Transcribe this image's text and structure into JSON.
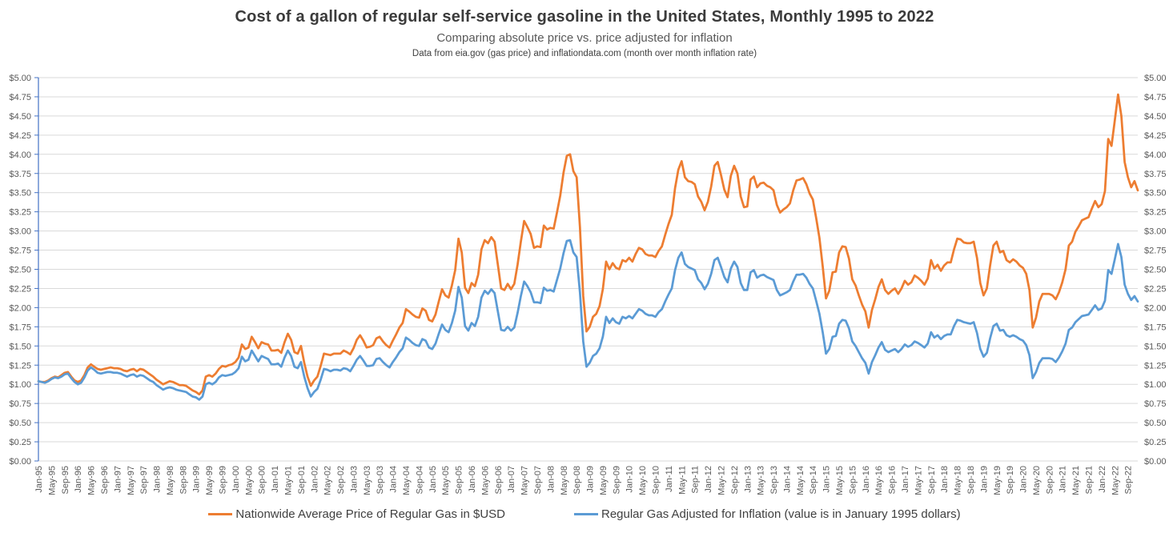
{
  "title": "Cost of a gallon of regular self-service gasoline in the United States, Monthly 1995 to 2022",
  "subtitle": "Comparing absolute price vs. price adjusted for inflation",
  "source_note": "Data from eia.gov (gas price) and inflationdata.com (month over month inflation rate)",
  "chart_data": {
    "type": "line",
    "x_frequency": "monthly",
    "x_start": "Jan-1995",
    "x_end": "Dec-2022",
    "grid": true,
    "legend_position": "bottom",
    "ylim": [
      0,
      5
    ],
    "y_tick_step": 0.25,
    "axis_color": "#4472C4",
    "grid_color": "#D9D9D9",
    "label_color": "#595959",
    "y_tick_labels": [
      "$0.00",
      "$0.25",
      "$0.50",
      "$0.75",
      "$1.00",
      "$1.25",
      "$1.50",
      "$1.75",
      "$2.00",
      "$2.25",
      "$2.50",
      "$2.75",
      "$3.00",
      "$3.25",
      "$3.50",
      "$3.75",
      "$4.00",
      "$4.25",
      "$4.50",
      "$4.75",
      "$5.00"
    ],
    "x_tick_every_months": 4,
    "x_tick_labels": [
      "Jan-95",
      "May-95",
      "Sep-95",
      "Jan-96",
      "May-96",
      "Sep-96",
      "Jan-97",
      "May-97",
      "Sep-97",
      "Jan-98",
      "May-98",
      "Sep-98",
      "Jan-99",
      "May-99",
      "Sep-99",
      "Jan-00",
      "May-00",
      "Sep-00",
      "Jan-01",
      "May-01",
      "Sep-01",
      "Jan-02",
      "May-02",
      "Sep-02",
      "Jan-03",
      "May-03",
      "Sep-03",
      "Jan-04",
      "May-04",
      "Sep-04",
      "Jan-05",
      "May-05",
      "Sep-05",
      "Jan-06",
      "May-06",
      "Sep-06",
      "Jan-07",
      "May-07",
      "Sep-07",
      "Jan-08",
      "May-08",
      "Sep-08",
      "Jan-09",
      "May-09",
      "Sep-09",
      "Jan-10",
      "May-10",
      "Sep-10",
      "Jan-11",
      "May-11",
      "Sep-11",
      "Jan-12",
      "May-12",
      "Sep-12",
      "Jan-13",
      "May-13",
      "Sep-13",
      "Jan-14",
      "May-14",
      "Sep-14",
      "Jan-15",
      "May-15",
      "Sep-15",
      "Jan-16",
      "May-16",
      "Sep-16",
      "Jan-17",
      "May-17",
      "Sep-17",
      "Jan-18",
      "May-18",
      "Sep-18",
      "Jan-19",
      "May-19",
      "Sep-19",
      "Jan-20",
      "May-20",
      "Sep-20",
      "Jan-21",
      "May-21",
      "Sep-21",
      "Jan-22",
      "May-22",
      "Sep-22"
    ],
    "series": [
      {
        "name": "Nationwide Average Price of Regular Gas in $USD",
        "color": "#ED7D31",
        "values": [
          1.04,
          1.03,
          1.03,
          1.05,
          1.08,
          1.1,
          1.09,
          1.12,
          1.15,
          1.16,
          1.1,
          1.05,
          1.03,
          1.05,
          1.12,
          1.22,
          1.26,
          1.23,
          1.2,
          1.19,
          1.2,
          1.21,
          1.22,
          1.21,
          1.21,
          1.2,
          1.18,
          1.17,
          1.19,
          1.2,
          1.17,
          1.2,
          1.19,
          1.16,
          1.13,
          1.1,
          1.06,
          1.03,
          1.0,
          1.02,
          1.04,
          1.03,
          1.01,
          0.99,
          0.99,
          0.98,
          0.95,
          0.92,
          0.9,
          0.87,
          0.92,
          1.1,
          1.12,
          1.1,
          1.14,
          1.2,
          1.24,
          1.23,
          1.25,
          1.26,
          1.29,
          1.35,
          1.52,
          1.46,
          1.48,
          1.62,
          1.55,
          1.47,
          1.55,
          1.53,
          1.52,
          1.44,
          1.44,
          1.45,
          1.41,
          1.55,
          1.66,
          1.58,
          1.42,
          1.4,
          1.5,
          1.28,
          1.1,
          0.98,
          1.05,
          1.1,
          1.24,
          1.4,
          1.39,
          1.38,
          1.4,
          1.4,
          1.4,
          1.44,
          1.42,
          1.39,
          1.47,
          1.58,
          1.64,
          1.57,
          1.48,
          1.49,
          1.51,
          1.6,
          1.62,
          1.56,
          1.51,
          1.48,
          1.57,
          1.65,
          1.74,
          1.8,
          1.98,
          1.95,
          1.91,
          1.88,
          1.87,
          1.99,
          1.96,
          1.84,
          1.82,
          1.91,
          2.08,
          2.24,
          2.16,
          2.13,
          2.29,
          2.49,
          2.9,
          2.72,
          2.26,
          2.19,
          2.32,
          2.28,
          2.43,
          2.76,
          2.88,
          2.84,
          2.92,
          2.86,
          2.56,
          2.25,
          2.23,
          2.31,
          2.24,
          2.31,
          2.56,
          2.86,
          3.13,
          3.05,
          2.96,
          2.78,
          2.8,
          2.79,
          3.07,
          3.02,
          3.04,
          3.03,
          3.24,
          3.46,
          3.76,
          3.98,
          4.0,
          3.78,
          3.7,
          3.05,
          2.15,
          1.69,
          1.75,
          1.88,
          1.92,
          2.02,
          2.24,
          2.6,
          2.5,
          2.58,
          2.52,
          2.5,
          2.62,
          2.6,
          2.65,
          2.6,
          2.7,
          2.78,
          2.76,
          2.7,
          2.68,
          2.68,
          2.66,
          2.74,
          2.8,
          2.95,
          3.09,
          3.21,
          3.56,
          3.8,
          3.91,
          3.7,
          3.65,
          3.64,
          3.61,
          3.45,
          3.38,
          3.27,
          3.38,
          3.58,
          3.85,
          3.9,
          3.73,
          3.54,
          3.44,
          3.72,
          3.85,
          3.75,
          3.45,
          3.31,
          3.32,
          3.67,
          3.71,
          3.57,
          3.62,
          3.63,
          3.59,
          3.57,
          3.53,
          3.34,
          3.24,
          3.28,
          3.31,
          3.36,
          3.53,
          3.66,
          3.67,
          3.69,
          3.61,
          3.49,
          3.41,
          3.17,
          2.91,
          2.54,
          2.12,
          2.22,
          2.46,
          2.47,
          2.72,
          2.8,
          2.79,
          2.64,
          2.37,
          2.29,
          2.16,
          2.04,
          1.95,
          1.74,
          1.97,
          2.11,
          2.27,
          2.37,
          2.23,
          2.18,
          2.22,
          2.25,
          2.18,
          2.25,
          2.35,
          2.3,
          2.33,
          2.42,
          2.39,
          2.35,
          2.3,
          2.38,
          2.62,
          2.51,
          2.56,
          2.48,
          2.55,
          2.59,
          2.59,
          2.76,
          2.9,
          2.89,
          2.85,
          2.84,
          2.84,
          2.86,
          2.65,
          2.32,
          2.16,
          2.25,
          2.55,
          2.81,
          2.86,
          2.72,
          2.74,
          2.62,
          2.59,
          2.63,
          2.6,
          2.55,
          2.52,
          2.44,
          2.23,
          1.74,
          1.87,
          2.08,
          2.18,
          2.18,
          2.18,
          2.16,
          2.11,
          2.2,
          2.33,
          2.5,
          2.81,
          2.86,
          2.99,
          3.06,
          3.14,
          3.16,
          3.18,
          3.29,
          3.39,
          3.31,
          3.35,
          3.52,
          4.2,
          4.11,
          4.44,
          4.78,
          4.5,
          3.9,
          3.7,
          3.57,
          3.65,
          3.53
        ]
      },
      {
        "name": "Regular Gas Adjusted for Inflation (value is in January 1995 dollars)",
        "color": "#5B9BD5",
        "values": [
          1.04,
          1.03,
          1.02,
          1.04,
          1.07,
          1.09,
          1.08,
          1.1,
          1.13,
          1.14,
          1.08,
          1.03,
          1.0,
          1.02,
          1.09,
          1.18,
          1.22,
          1.19,
          1.15,
          1.14,
          1.15,
          1.16,
          1.16,
          1.15,
          1.15,
          1.14,
          1.12,
          1.1,
          1.12,
          1.13,
          1.1,
          1.12,
          1.11,
          1.08,
          1.05,
          1.03,
          0.99,
          0.96,
          0.93,
          0.95,
          0.96,
          0.95,
          0.93,
          0.92,
          0.91,
          0.9,
          0.87,
          0.84,
          0.83,
          0.8,
          0.84,
          1.0,
          1.02,
          1.0,
          1.03,
          1.09,
          1.12,
          1.11,
          1.12,
          1.13,
          1.16,
          1.21,
          1.36,
          1.3,
          1.32,
          1.44,
          1.37,
          1.3,
          1.37,
          1.35,
          1.33,
          1.26,
          1.26,
          1.27,
          1.23,
          1.35,
          1.44,
          1.37,
          1.23,
          1.21,
          1.29,
          1.1,
          0.95,
          0.84,
          0.9,
          0.94,
          1.06,
          1.2,
          1.19,
          1.17,
          1.19,
          1.19,
          1.18,
          1.21,
          1.2,
          1.17,
          1.24,
          1.32,
          1.37,
          1.31,
          1.24,
          1.24,
          1.25,
          1.33,
          1.34,
          1.29,
          1.25,
          1.22,
          1.29,
          1.35,
          1.42,
          1.47,
          1.61,
          1.58,
          1.54,
          1.51,
          1.5,
          1.59,
          1.57,
          1.48,
          1.46,
          1.53,
          1.66,
          1.78,
          1.71,
          1.68,
          1.8,
          1.96,
          2.27,
          2.13,
          1.76,
          1.7,
          1.8,
          1.76,
          1.88,
          2.13,
          2.22,
          2.18,
          2.24,
          2.19,
          1.95,
          1.71,
          1.7,
          1.75,
          1.7,
          1.74,
          1.93,
          2.15,
          2.34,
          2.28,
          2.2,
          2.07,
          2.07,
          2.06,
          2.26,
          2.22,
          2.23,
          2.21,
          2.36,
          2.51,
          2.71,
          2.87,
          2.88,
          2.72,
          2.66,
          2.2,
          1.56,
          1.23,
          1.28,
          1.37,
          1.4,
          1.47,
          1.62,
          1.88,
          1.8,
          1.86,
          1.81,
          1.79,
          1.88,
          1.86,
          1.89,
          1.86,
          1.92,
          1.98,
          1.96,
          1.92,
          1.9,
          1.9,
          1.88,
          1.94,
          1.98,
          2.08,
          2.17,
          2.25,
          2.49,
          2.65,
          2.72,
          2.57,
          2.53,
          2.51,
          2.49,
          2.37,
          2.32,
          2.24,
          2.31,
          2.44,
          2.62,
          2.65,
          2.53,
          2.4,
          2.33,
          2.51,
          2.6,
          2.53,
          2.32,
          2.23,
          2.23,
          2.46,
          2.49,
          2.39,
          2.42,
          2.43,
          2.4,
          2.38,
          2.36,
          2.23,
          2.16,
          2.18,
          2.2,
          2.23,
          2.34,
          2.43,
          2.43,
          2.44,
          2.39,
          2.31,
          2.25,
          2.09,
          1.92,
          1.68,
          1.4,
          1.46,
          1.62,
          1.63,
          1.79,
          1.84,
          1.83,
          1.73,
          1.56,
          1.5,
          1.42,
          1.34,
          1.28,
          1.14,
          1.29,
          1.38,
          1.48,
          1.55,
          1.45,
          1.42,
          1.44,
          1.46,
          1.42,
          1.46,
          1.52,
          1.49,
          1.51,
          1.56,
          1.54,
          1.51,
          1.48,
          1.53,
          1.68,
          1.61,
          1.64,
          1.59,
          1.63,
          1.65,
          1.65,
          1.76,
          1.84,
          1.83,
          1.81,
          1.8,
          1.79,
          1.81,
          1.67,
          1.46,
          1.36,
          1.41,
          1.6,
          1.76,
          1.79,
          1.7,
          1.71,
          1.64,
          1.62,
          1.64,
          1.62,
          1.59,
          1.57,
          1.51,
          1.38,
          1.08,
          1.16,
          1.28,
          1.34,
          1.34,
          1.34,
          1.33,
          1.29,
          1.35,
          1.43,
          1.53,
          1.71,
          1.74,
          1.81,
          1.85,
          1.89,
          1.9,
          1.91,
          1.97,
          2.03,
          1.97,
          1.99,
          2.09,
          2.49,
          2.44,
          2.63,
          2.83,
          2.66,
          2.3,
          2.18,
          2.1,
          2.15,
          2.08
        ]
      }
    ]
  }
}
